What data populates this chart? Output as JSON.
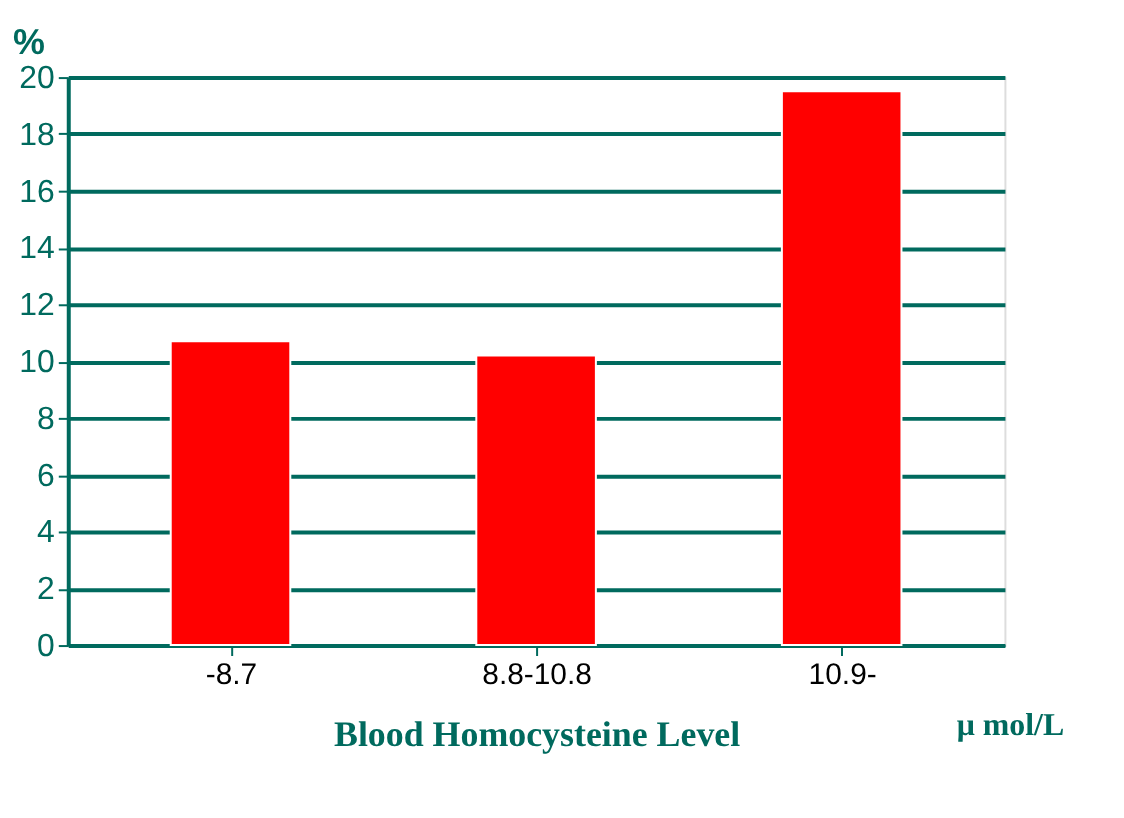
{
  "chart_data": {
    "type": "bar",
    "categories": [
      "-8.7",
      "8.8-10.8",
      "10.9-"
    ],
    "values": [
      10.7,
      10.2,
      19.5
    ],
    "color": "#ff0000",
    "ylabel": "%",
    "xlabel": "Blood Homocysteine Level",
    "annotations": [
      "μ mol/L"
    ],
    "ylim": [
      0,
      20
    ],
    "yticks": [
      0,
      2,
      4,
      6,
      8,
      10,
      12,
      14,
      16,
      18,
      20
    ],
    "grid": "y"
  }
}
